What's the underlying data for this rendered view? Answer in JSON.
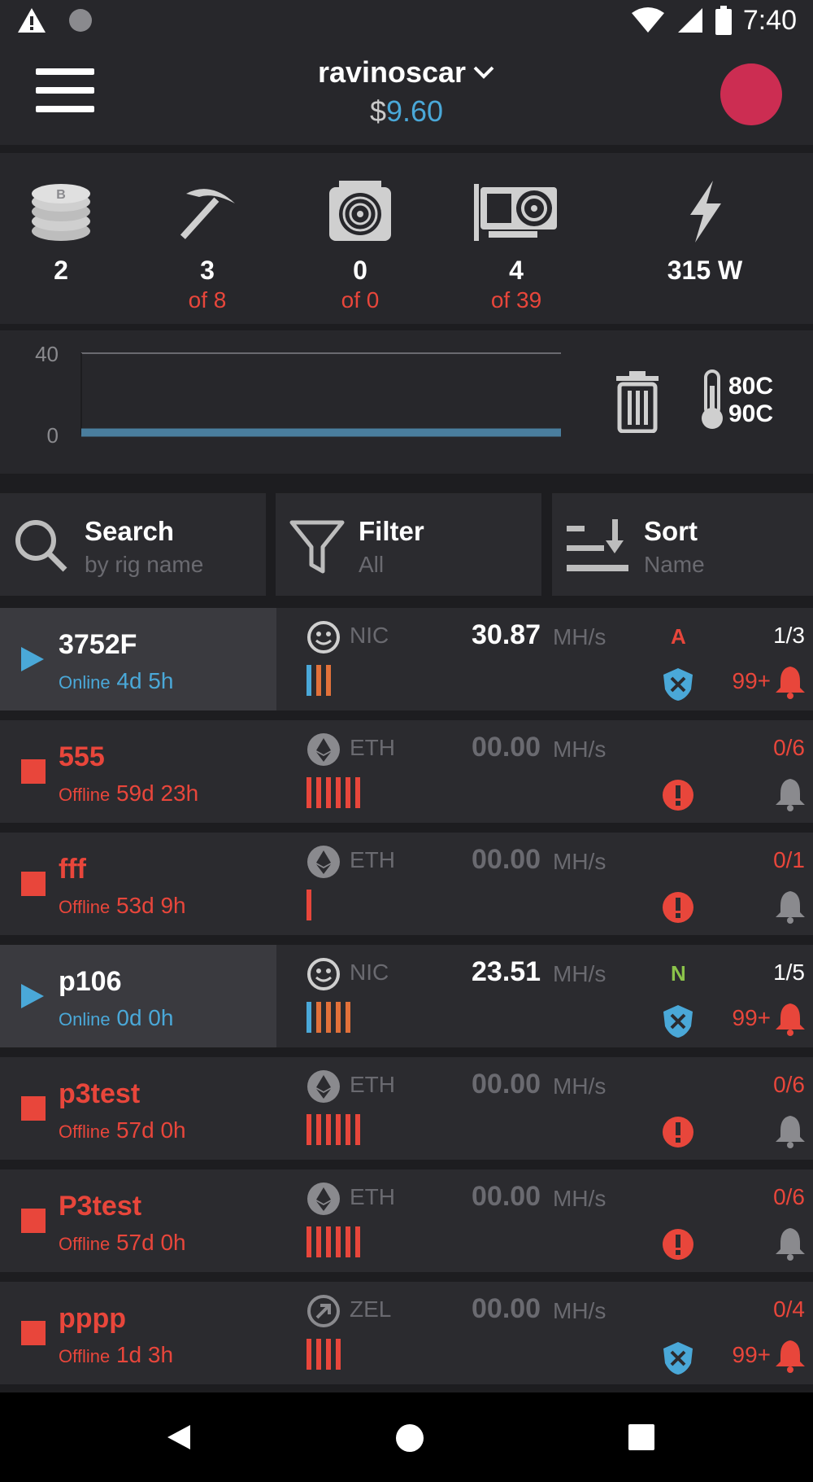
{
  "status_bar": {
    "time": "7:40",
    "icons": [
      "warning-icon",
      "dot-icon",
      "wifi-icon",
      "signal-icon",
      "battery-icon"
    ]
  },
  "header": {
    "account_name": "ravinoscar",
    "balance_currency": "$",
    "balance_amount": "9.60"
  },
  "stats": {
    "coins": {
      "value": "2"
    },
    "rigs": {
      "value": "3",
      "of": "of 8"
    },
    "asics": {
      "value": "0",
      "of": "of 0"
    },
    "gpus": {
      "value": "4",
      "of": "of 39"
    },
    "power": {
      "value": "315 W"
    }
  },
  "chart_data": {
    "type": "line",
    "ylim": [
      0,
      40
    ],
    "yticks": [
      "40",
      "0"
    ],
    "series": [
      {
        "values": [
          1,
          1,
          1,
          1,
          1,
          1,
          1,
          1
        ]
      }
    ]
  },
  "temps": {
    "first": "80C",
    "second": "90C"
  },
  "controls": {
    "search": {
      "title": "Search",
      "sub": "by rig name"
    },
    "filter": {
      "title": "Filter",
      "sub": "All"
    },
    "sort": {
      "title": "Sort",
      "sub": "Name"
    }
  },
  "colors": {
    "online": "#4aa8d8",
    "offline": "#e8463b",
    "accent_orange": "#e2713a",
    "green": "#8bc34a"
  },
  "rigs": [
    {
      "name": "3752F",
      "state": "Online",
      "uptime": "4d 5h",
      "coin": "NIC",
      "hashrate": "30.87",
      "unit": "MH/s",
      "badge": "A",
      "gpus": "1/3",
      "alerts": "99+"
    },
    {
      "name": "555",
      "state": "Offline",
      "uptime": "59d 23h",
      "coin": "ETH",
      "hashrate": "00.00",
      "unit": "MH/s",
      "gpus": "0/6"
    },
    {
      "name": "fff",
      "state": "Offline",
      "uptime": "53d 9h",
      "coin": "ETH",
      "hashrate": "00.00",
      "unit": "MH/s",
      "gpus": "0/1"
    },
    {
      "name": "p106",
      "state": "Online",
      "uptime": "0d 0h",
      "coin": "NIC",
      "hashrate": "23.51",
      "unit": "MH/s",
      "badge": "N",
      "gpus": "1/5",
      "alerts": "99+"
    },
    {
      "name": "p3test",
      "state": "Offline",
      "uptime": "57d 0h",
      "coin": "ETH",
      "hashrate": "00.00",
      "unit": "MH/s",
      "gpus": "0/6"
    },
    {
      "name": "P3test",
      "state": "Offline",
      "uptime": "57d 0h",
      "coin": "ETH",
      "hashrate": "00.00",
      "unit": "MH/s",
      "gpus": "0/6"
    },
    {
      "name": "pppp",
      "state": "Offline",
      "uptime": "1d 3h",
      "coin": "ZEL",
      "hashrate": "00.00",
      "unit": "MH/s",
      "gpus": "0/4",
      "alerts": "99+"
    }
  ]
}
